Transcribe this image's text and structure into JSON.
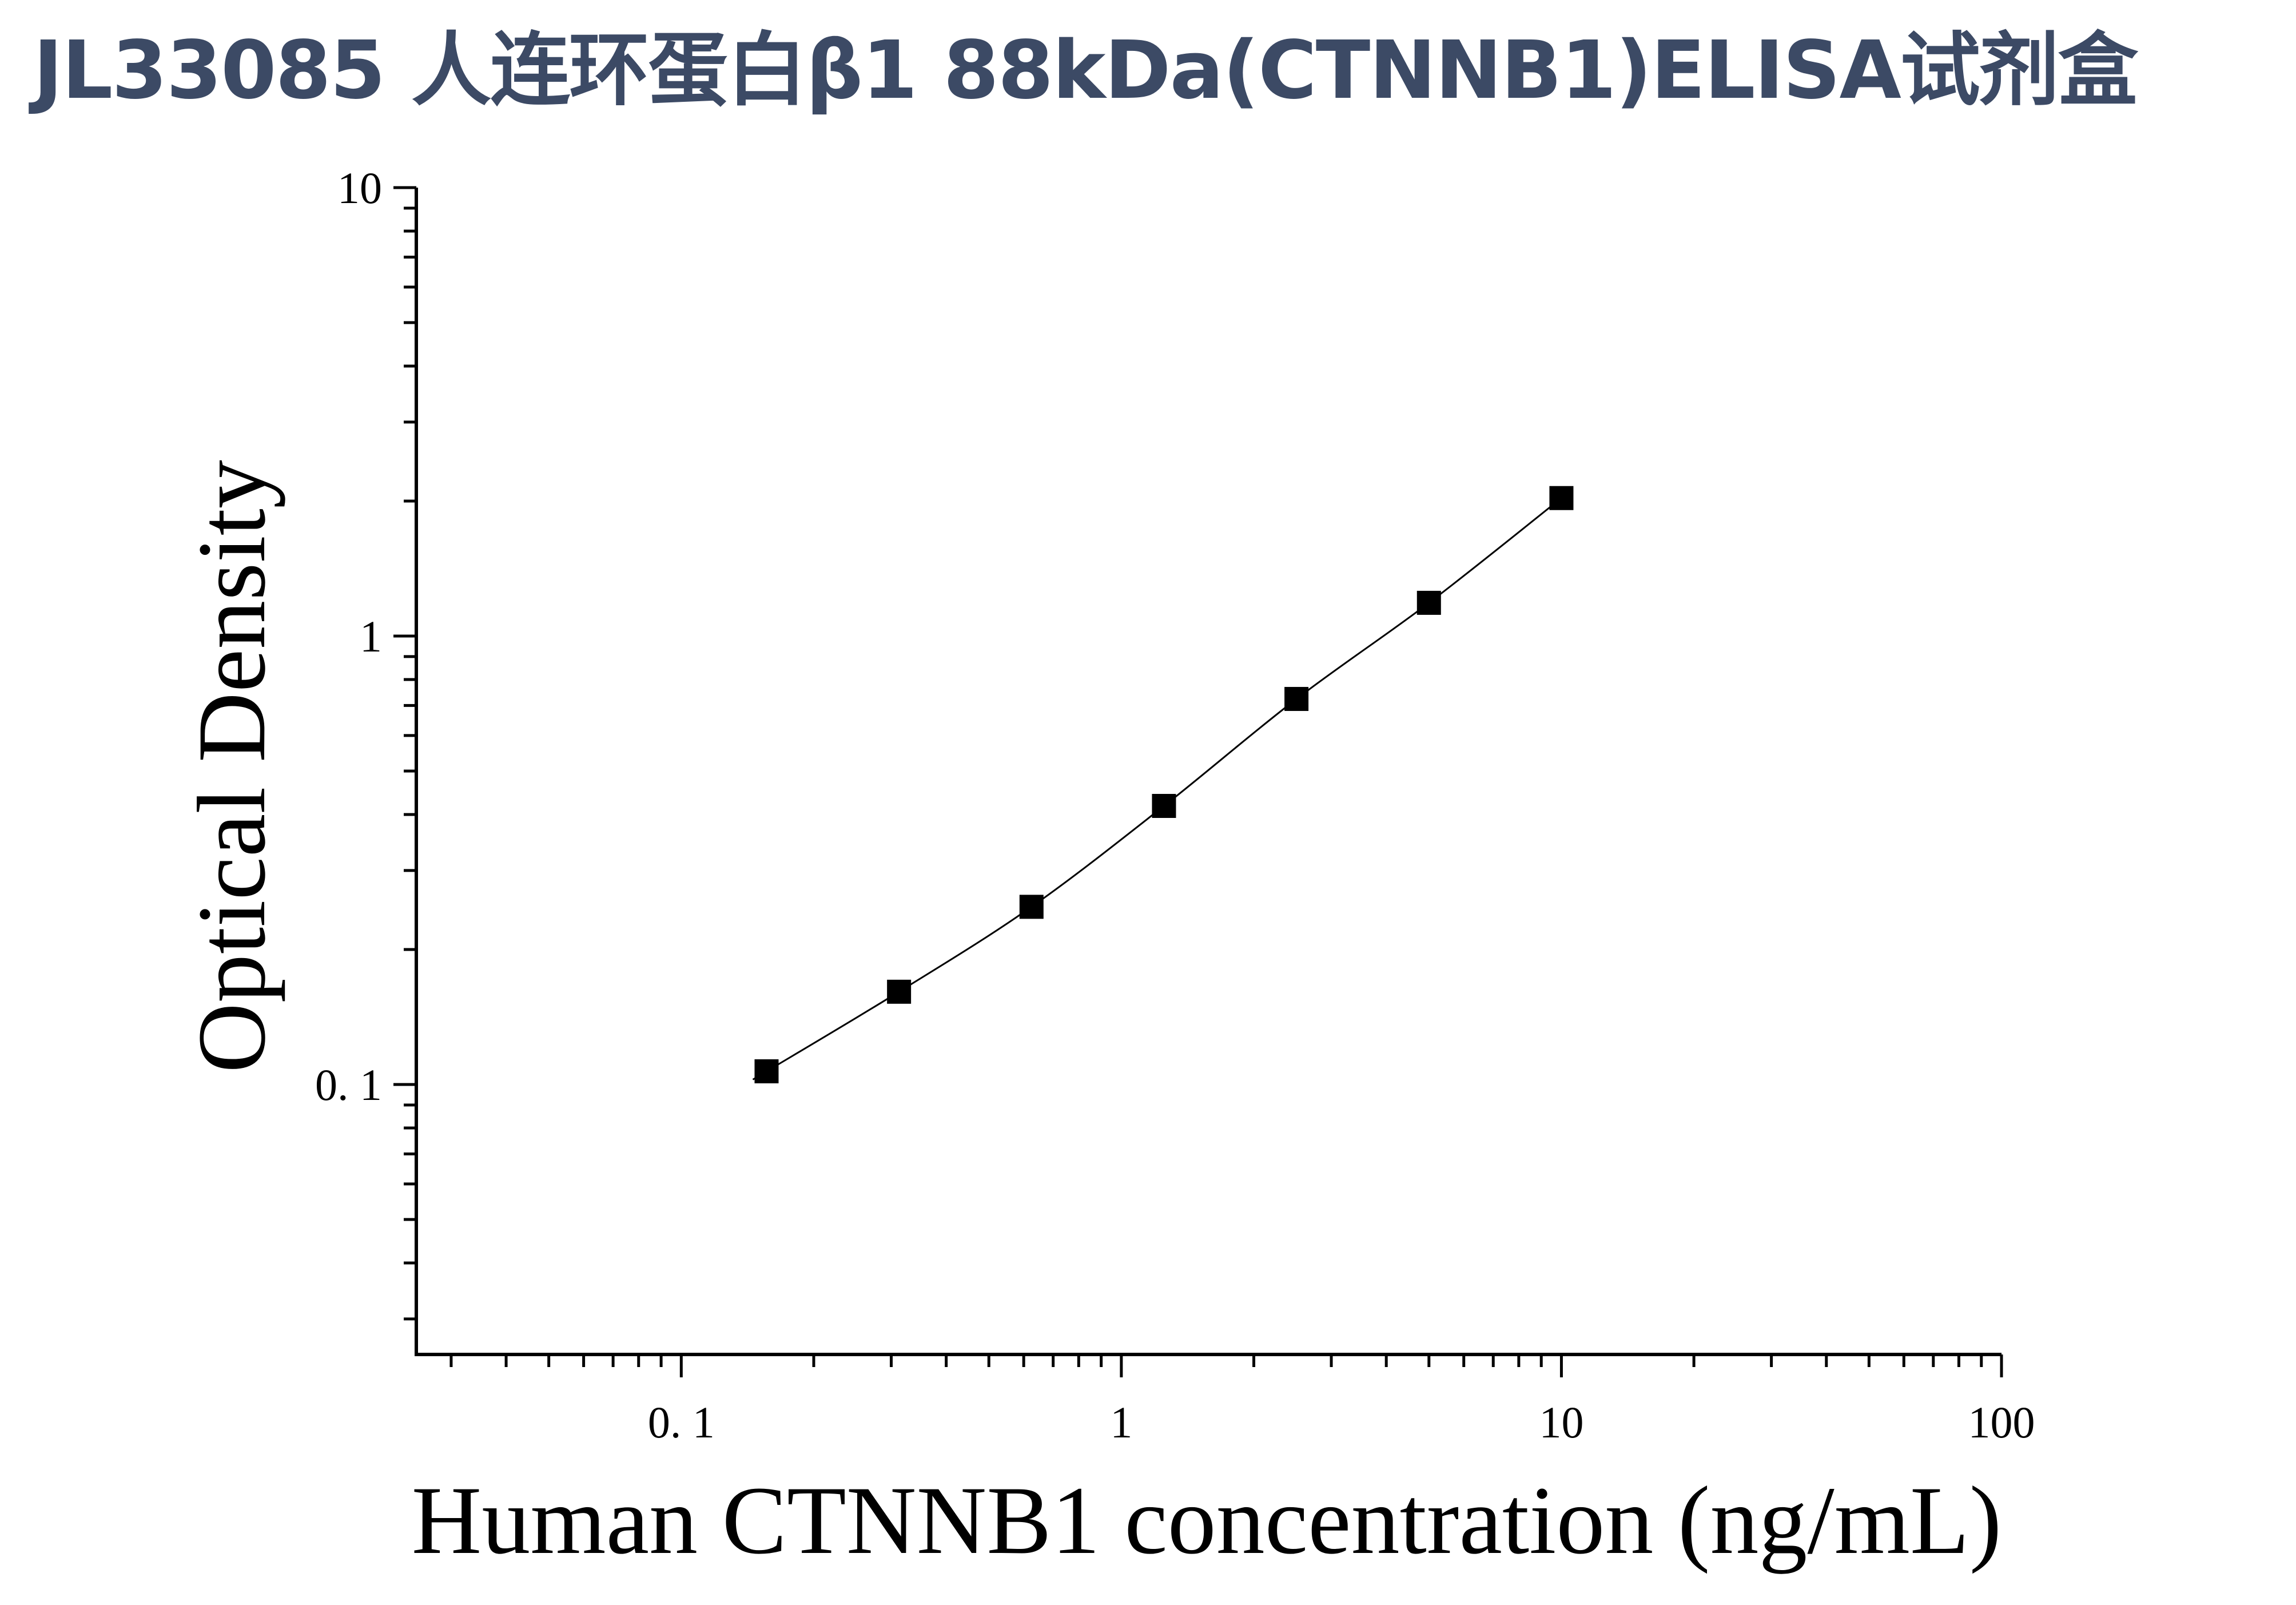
{
  "page": {
    "title": "JL33085 人连环蛋白β1 88kDa(CTNNB1)ELISA试剂盒",
    "title_color": "#3c4a65"
  },
  "chart_data": {
    "type": "line",
    "title": "JL33085 人连环蛋白β1 88kDa(CTNNB1)ELISA试剂盒",
    "xlabel": "Human CTNNB1 concentration (ng/mL)",
    "ylabel": "Optical Density",
    "x_scale": "log",
    "y_scale": "log",
    "xlim": [
      0.025,
      100
    ],
    "ylim": [
      0.025,
      10
    ],
    "x_ticks": [
      {
        "value": 0.1,
        "label": "0. 1"
      },
      {
        "value": 1,
        "label": "1"
      },
      {
        "value": 10,
        "label": "10"
      },
      {
        "value": 100,
        "label": "100"
      }
    ],
    "y_ticks": [
      {
        "value": 0.1,
        "label": "0. 1"
      },
      {
        "value": 1,
        "label": "1"
      },
      {
        "value": 10,
        "label": "10"
      }
    ],
    "grid": false,
    "marker": "square",
    "marker_color": "#000000",
    "line_color": "#000000",
    "series": [
      {
        "x": [
          0.15625,
          0.3125,
          0.625,
          1.25,
          2.5,
          5,
          10
        ],
        "y": [
          0.107,
          0.161,
          0.249,
          0.418,
          0.724,
          1.186,
          2.031
        ]
      }
    ]
  }
}
